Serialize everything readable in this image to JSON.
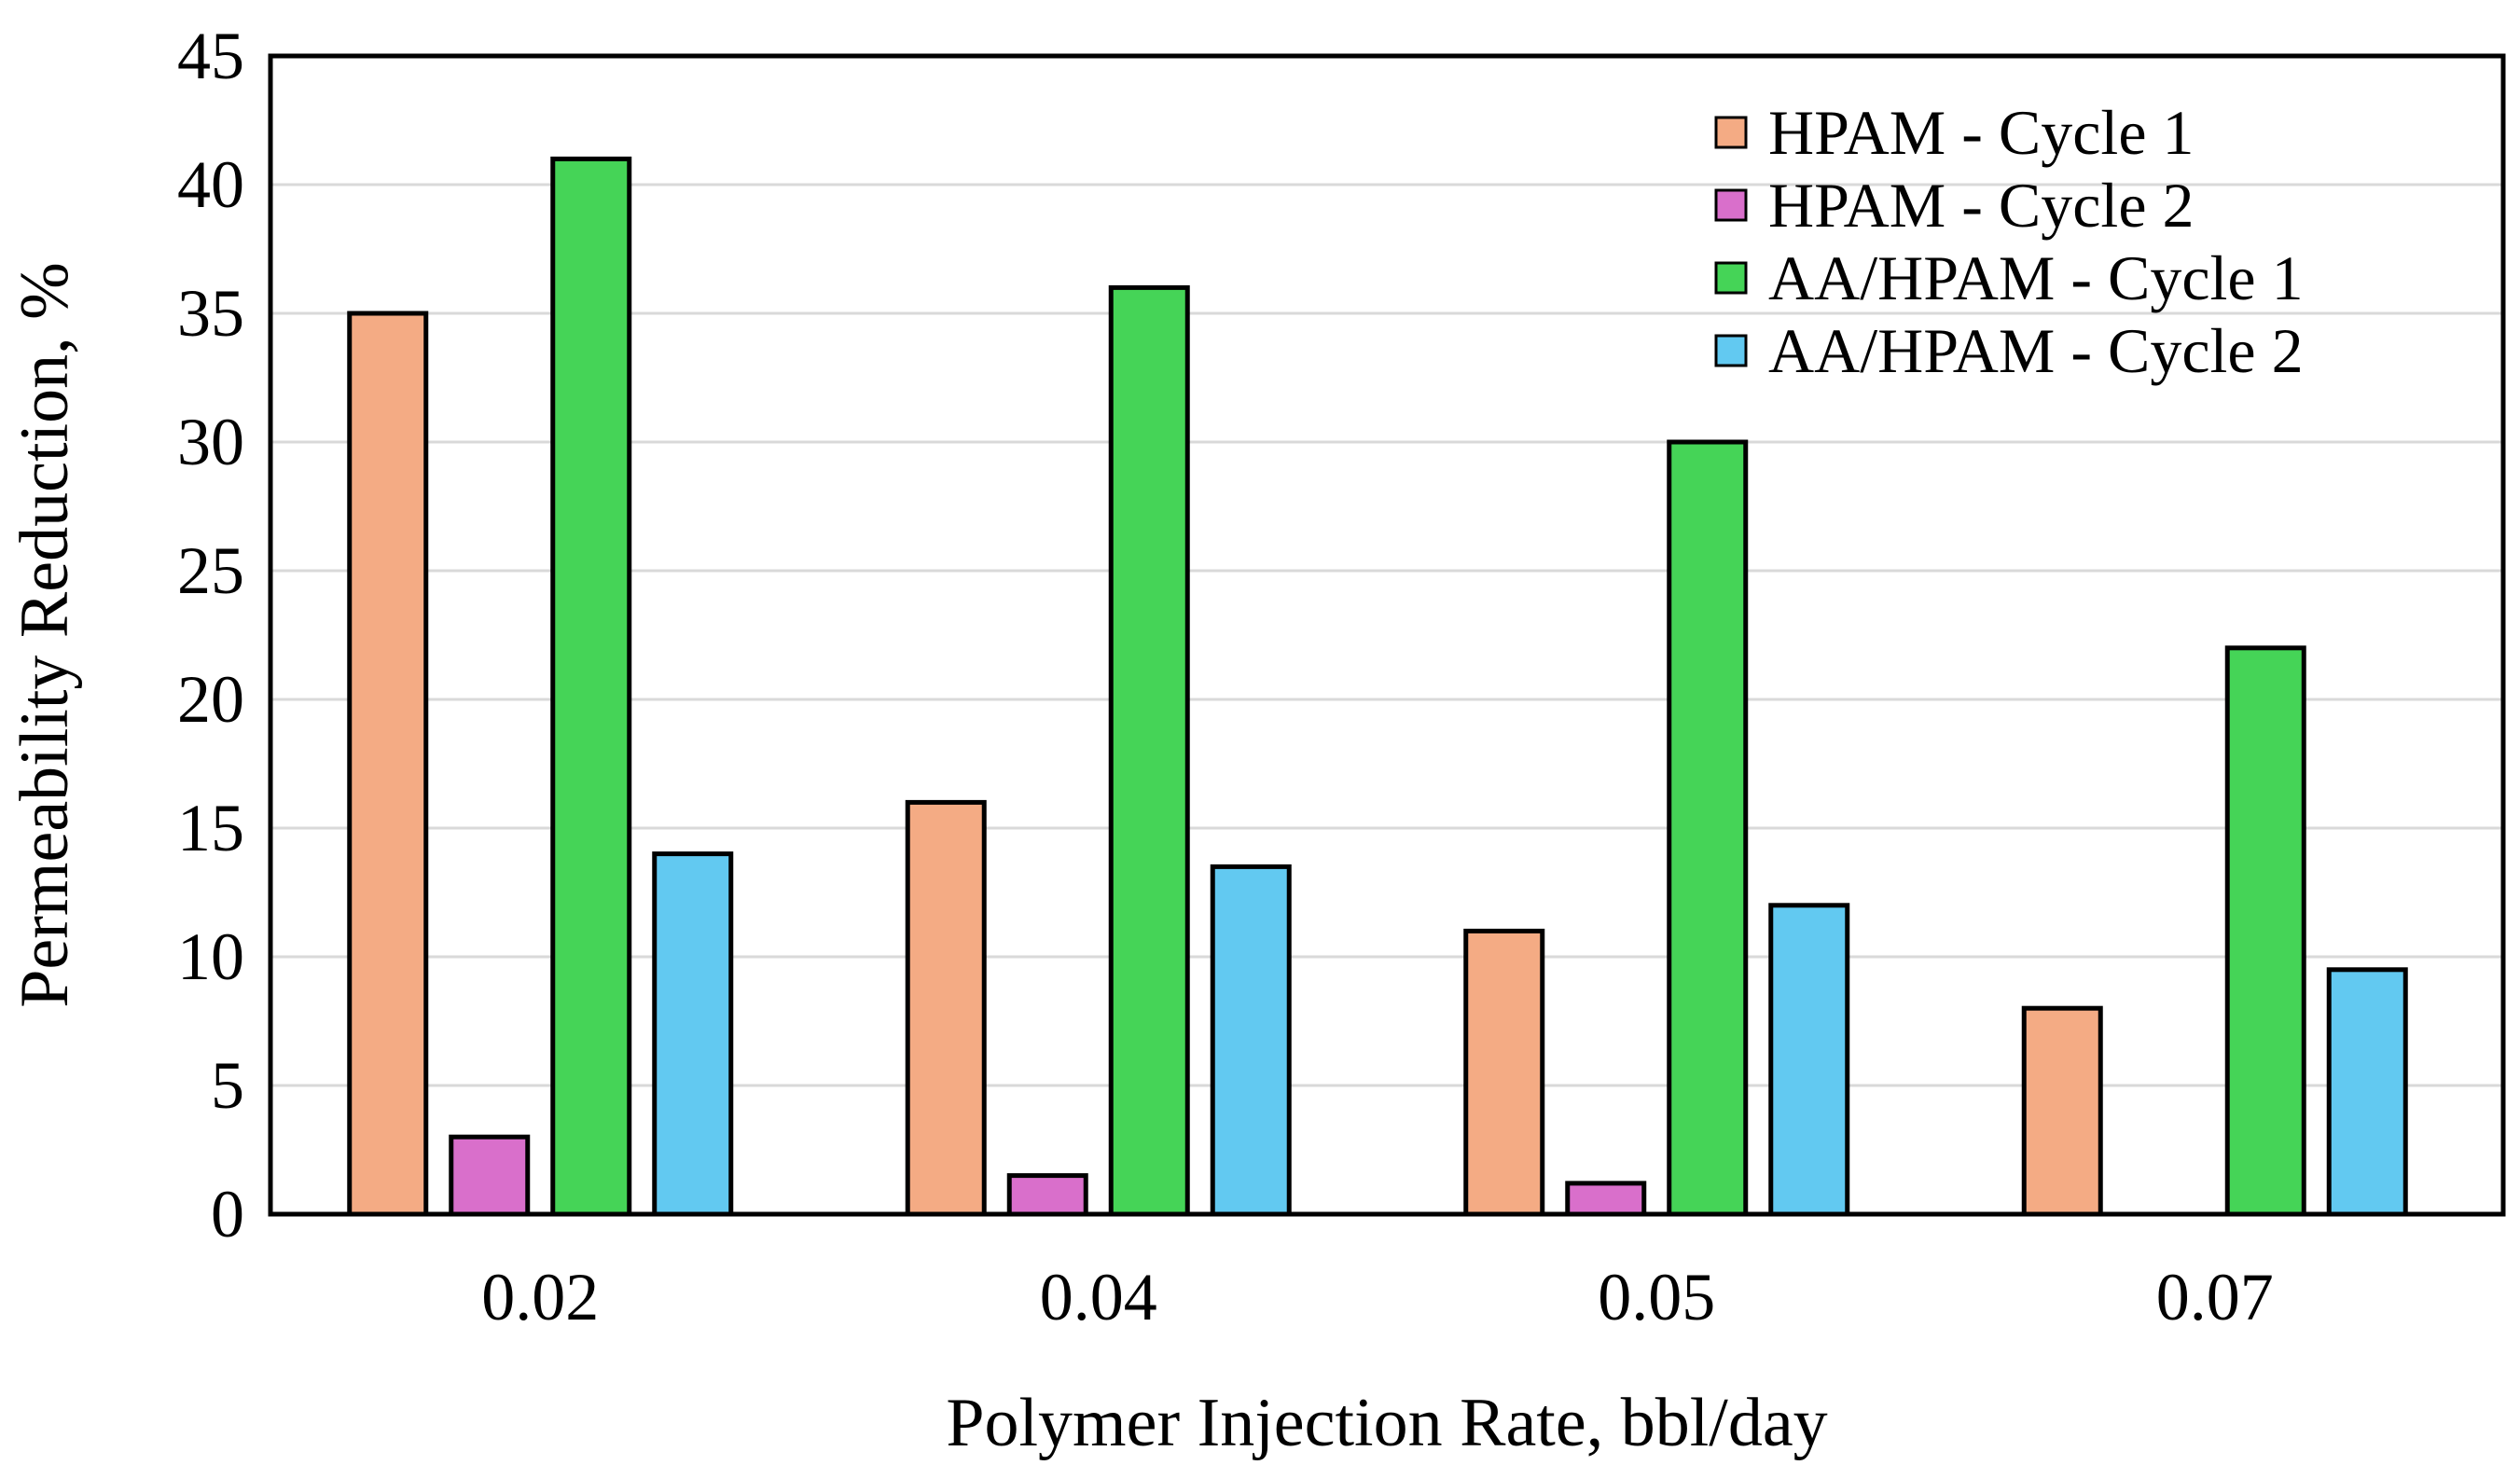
{
  "chart_data": {
    "type": "bar",
    "title": "",
    "xlabel": "Polymer Injection Rate, bbl/day",
    "ylabel": "Permeability Reduction, %",
    "ylim": [
      0,
      45
    ],
    "yticks": [
      0,
      5,
      10,
      15,
      20,
      25,
      30,
      35,
      40,
      45
    ],
    "grid": true,
    "legend_position": "top-right",
    "categories": [
      "0.02",
      "0.04",
      "0.05",
      "0.07"
    ],
    "series": [
      {
        "name": "HPAM - Cycle 1",
        "color": "#F4AB84",
        "values": [
          35,
          16,
          11,
          8
        ]
      },
      {
        "name": "HPAM - Cycle 2",
        "color": "#D96FCB",
        "values": [
          3,
          1.5,
          1.2,
          0
        ]
      },
      {
        "name": "AA/HPAM - Cycle 1",
        "color": "#45D457",
        "values": [
          41,
          36,
          30,
          22
        ]
      },
      {
        "name": "AA/HPAM - Cycle 2",
        "color": "#62C9F1",
        "values": [
          14,
          13.5,
          12,
          9.5
        ]
      }
    ]
  }
}
